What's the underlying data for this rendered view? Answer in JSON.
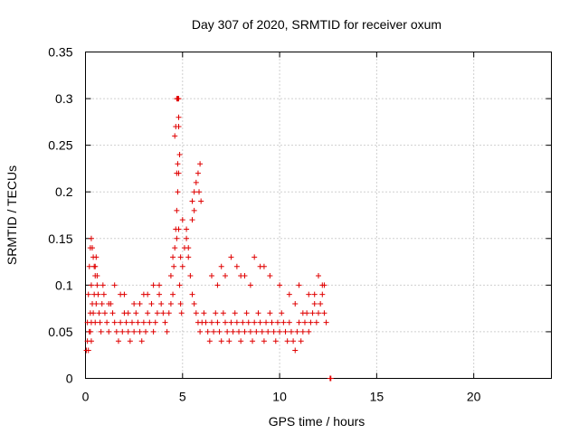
{
  "chart_data": {
    "type": "scatter",
    "title": "Day 307 of 2020, SRMTID for receiver oxum",
    "xlabel": "GPS time / hours",
    "ylabel": "SRMTID / TECUs",
    "xlim": [
      0,
      24
    ],
    "ylim": [
      0,
      0.35
    ],
    "xticks": [
      0,
      5,
      10,
      15,
      20
    ],
    "xtick_labels": [
      "0",
      "5",
      "10",
      "15",
      "20"
    ],
    "yticks": [
      0,
      0.05,
      0.1,
      0.15,
      0.2,
      0.25,
      0.3,
      0.35
    ],
    "ytick_labels": [
      "0",
      "0.05",
      "0.1",
      "0.15",
      "0.2",
      "0.25",
      "0.3",
      "0.35"
    ],
    "grid": true,
    "marker": "plus",
    "colors": {
      "series": "#e00000",
      "grid": "#a0a0a0",
      "axis": "#000000"
    },
    "series": [
      {
        "name": "SRMTID",
        "x": [
          0.05,
          0.1,
          0.15,
          0.2,
          0.25,
          0.3,
          0.35,
          0.4,
          0.45,
          0.5,
          0.55,
          0.6,
          0.2,
          0.25,
          0.3,
          0.5,
          0.55,
          0.6,
          0.65,
          0.7,
          0.75,
          0.8,
          0.85,
          0.9,
          0.95,
          1.0,
          1.1,
          1.2,
          1.3,
          1.4,
          1.5,
          1.6,
          1.7,
          1.8,
          1.9,
          2.0,
          2.1,
          2.2,
          2.3,
          2.4,
          2.5,
          2.6,
          2.7,
          2.8,
          2.9,
          3.0,
          3.1,
          3.2,
          3.3,
          3.4,
          3.5,
          3.6,
          3.7,
          3.8,
          3.9,
          4.0,
          4.1,
          4.2,
          4.3,
          4.4,
          4.5,
          4.55,
          4.6,
          4.65,
          4.7,
          4.75,
          4.8,
          4.85,
          4.9,
          4.95,
          5.0,
          5.1,
          5.2,
          5.3,
          5.4,
          5.5,
          5.6,
          5.7,
          5.8,
          5.9,
          6.0,
          6.1,
          6.2,
          6.3,
          6.4,
          6.5,
          6.6,
          6.7,
          6.8,
          6.9,
          7.0,
          7.1,
          7.2,
          7.3,
          7.4,
          7.5,
          7.6,
          7.7,
          7.8,
          7.9,
          8.0,
          8.1,
          8.2,
          8.3,
          8.4,
          8.5,
          8.6,
          8.7,
          8.8,
          8.9,
          9.0,
          9.1,
          9.2,
          9.3,
          9.4,
          9.5,
          9.6,
          9.7,
          9.8,
          9.9,
          10.0,
          10.1,
          10.2,
          10.3,
          10.4,
          10.5,
          10.6,
          10.7,
          10.8,
          10.9,
          11.0,
          11.1,
          11.2,
          11.3,
          11.4,
          11.5,
          11.6,
          11.7,
          11.8,
          11.9,
          12.0,
          12.1,
          12.2,
          12.3,
          12.4,
          4.6,
          4.65,
          4.7,
          4.75,
          4.8,
          4.85,
          4.7,
          4.75,
          5.5,
          5.6,
          5.7,
          5.8,
          5.85,
          5.9,
          5.95,
          5.5,
          5.6,
          4.5,
          4.4,
          5.0,
          5.2,
          5.3,
          0.3,
          0.35,
          0.4,
          0.45,
          0.5,
          1.5,
          2.0,
          2.5,
          3.0,
          3.5,
          6.5,
          7.0,
          7.5,
          8.0,
          8.5,
          9.0,
          9.5,
          10.0,
          10.5,
          11.0,
          11.5,
          12.0,
          12.3,
          4.7,
          4.8,
          4.9,
          7.8,
          8.2,
          8.7,
          9.2,
          6.8,
          7.2,
          1.2,
          1.8,
          2.2,
          2.8,
          3.2,
          3.8,
          10.8,
          11.2,
          11.8,
          12.2,
          0.1,
          0.15,
          0.25,
          0.3,
          4.75,
          4.8,
          4.8,
          12.6,
          12.62,
          12.64
        ],
        "y": [
          0.03,
          0.06,
          0.09,
          0.12,
          0.14,
          0.1,
          0.08,
          0.07,
          0.09,
          0.12,
          0.13,
          0.1,
          0.05,
          0.07,
          0.04,
          0.06,
          0.08,
          0.11,
          0.09,
          0.07,
          0.06,
          0.05,
          0.08,
          0.1,
          0.09,
          0.07,
          0.06,
          0.05,
          0.08,
          0.07,
          0.06,
          0.05,
          0.04,
          0.06,
          0.05,
          0.07,
          0.06,
          0.05,
          0.04,
          0.06,
          0.05,
          0.07,
          0.06,
          0.05,
          0.04,
          0.06,
          0.05,
          0.07,
          0.06,
          0.08,
          0.05,
          0.06,
          0.07,
          0.09,
          0.08,
          0.07,
          0.06,
          0.05,
          0.07,
          0.08,
          0.09,
          0.12,
          0.14,
          0.16,
          0.18,
          0.2,
          0.22,
          0.1,
          0.08,
          0.07,
          0.12,
          0.14,
          0.15,
          0.13,
          0.11,
          0.09,
          0.08,
          0.07,
          0.06,
          0.05,
          0.06,
          0.07,
          0.06,
          0.05,
          0.04,
          0.06,
          0.05,
          0.07,
          0.06,
          0.05,
          0.04,
          0.07,
          0.06,
          0.05,
          0.04,
          0.06,
          0.05,
          0.07,
          0.06,
          0.05,
          0.04,
          0.06,
          0.05,
          0.07,
          0.06,
          0.05,
          0.04,
          0.06,
          0.05,
          0.07,
          0.06,
          0.05,
          0.04,
          0.06,
          0.05,
          0.07,
          0.06,
          0.05,
          0.04,
          0.06,
          0.05,
          0.07,
          0.06,
          0.05,
          0.04,
          0.06,
          0.05,
          0.04,
          0.03,
          0.05,
          0.06,
          0.04,
          0.05,
          0.06,
          0.07,
          0.05,
          0.06,
          0.07,
          0.08,
          0.06,
          0.07,
          0.08,
          0.09,
          0.07,
          0.06,
          0.26,
          0.27,
          0.3,
          0.3,
          0.27,
          0.24,
          0.22,
          0.23,
          0.19,
          0.2,
          0.21,
          0.22,
          0.2,
          0.23,
          0.19,
          0.17,
          0.18,
          0.13,
          0.11,
          0.17,
          0.16,
          0.14,
          0.15,
          0.14,
          0.13,
          0.12,
          0.11,
          0.1,
          0.09,
          0.08,
          0.09,
          0.1,
          0.11,
          0.12,
          0.13,
          0.11,
          0.1,
          0.12,
          0.11,
          0.1,
          0.09,
          0.1,
          0.09,
          0.11,
          0.1,
          0.15,
          0.16,
          0.13,
          0.12,
          0.11,
          0.13,
          0.12,
          0.1,
          0.11,
          0.08,
          0.09,
          0.07,
          0.08,
          0.09,
          0.1,
          0.08,
          0.07,
          0.09,
          0.1,
          0.04,
          0.03,
          0.05,
          0.06,
          0.3,
          0.3,
          0.28,
          0.0,
          0.0,
          0.0
        ]
      }
    ]
  }
}
